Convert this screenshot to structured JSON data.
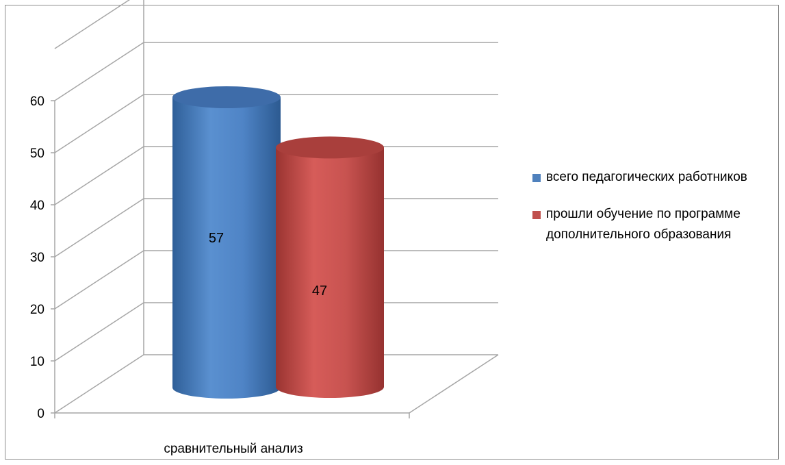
{
  "chart_data": {
    "type": "bar",
    "categories": [
      "сравнительный анализ"
    ],
    "series": [
      {
        "name": "всего педагогических работников",
        "values": [
          57
        ],
        "color": "#4f81bd"
      },
      {
        "name": "прошли обучение по программе дополнительного образования",
        "values": [
          47
        ],
        "color": "#c0504d"
      }
    ],
    "yticks": [
      "0",
      "10",
      "20",
      "30",
      "40",
      "50",
      "60"
    ],
    "ylim": [
      0,
      70
    ],
    "grid": true,
    "legend_position": "right",
    "style": "3d-cylinder"
  }
}
